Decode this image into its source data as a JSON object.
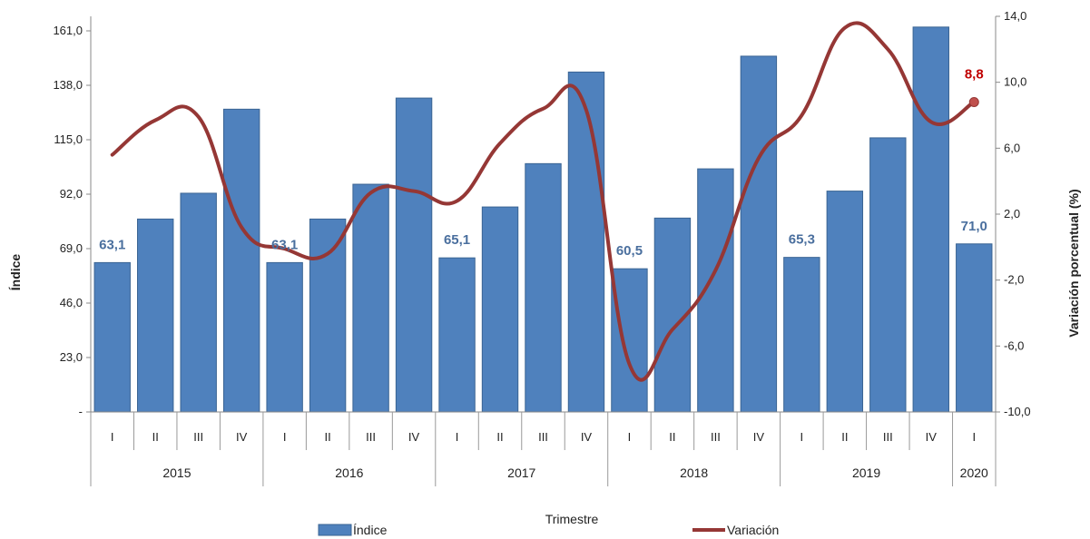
{
  "chart_data": {
    "type": "bar",
    "title": "",
    "xlabel": "Trimestre",
    "ylabel": "Índice",
    "y2label": "Variación porcentual (%)",
    "ylim": [
      0,
      161
    ],
    "y_ticks": [
      "-",
      "23,0",
      "46,0",
      "69,0",
      "92,0",
      "115,0",
      "138,0",
      "161,0"
    ],
    "y2lim": [
      -10,
      14
    ],
    "y2_ticks": [
      "-10,0",
      "-6,0",
      "-2,0",
      "2,0",
      "6,0",
      "10,0",
      "14,0"
    ],
    "categories": [
      "I",
      "II",
      "III",
      "IV",
      "I",
      "II",
      "III",
      "IV",
      "I",
      "II",
      "III",
      "IV",
      "I",
      "II",
      "III",
      "IV",
      "I",
      "II",
      "III",
      "IV",
      "I"
    ],
    "years": [
      {
        "label": "2015",
        "count": 4
      },
      {
        "label": "2016",
        "count": 4
      },
      {
        "label": "2017",
        "count": 4
      },
      {
        "label": "2018",
        "count": 4
      },
      {
        "label": "2019",
        "count": 4
      },
      {
        "label": "2020",
        "count": 1
      }
    ],
    "series": [
      {
        "name": "Índice",
        "kind": "bar",
        "color": "#4f81bd",
        "values": [
          63.1,
          81.5,
          92.4,
          127.9,
          63.1,
          81.5,
          96.2,
          132.6,
          65.1,
          86.6,
          104.9,
          143.6,
          60.5,
          81.9,
          102.7,
          150.3,
          65.3,
          93.3,
          115.8,
          162.6,
          71.0
        ]
      },
      {
        "name": "Variación",
        "kind": "line",
        "color": "#953735",
        "values": [
          5.6,
          7.7,
          7.9,
          1.2,
          -0.1,
          -0.4,
          3.3,
          3.4,
          2.8,
          6.3,
          8.4,
          8.3,
          -7.1,
          -5.0,
          -1.4,
          5.4,
          8.0,
          13.3,
          12.0,
          7.6,
          8.8
        ]
      }
    ],
    "data_labels": [
      {
        "index": 0,
        "text": "63,1"
      },
      {
        "index": 4,
        "text": "63,1"
      },
      {
        "index": 8,
        "text": "65,1"
      },
      {
        "index": 12,
        "text": "60,5"
      },
      {
        "index": 16,
        "text": "65,3"
      },
      {
        "index": 20,
        "text": "71,0"
      }
    ],
    "line_label": {
      "index": 20,
      "text": "8,8"
    },
    "label_colors": {
      "bar": "#4a6f9e",
      "line": "#c00000"
    },
    "legend": {
      "position": "bottom"
    },
    "grid": false
  }
}
